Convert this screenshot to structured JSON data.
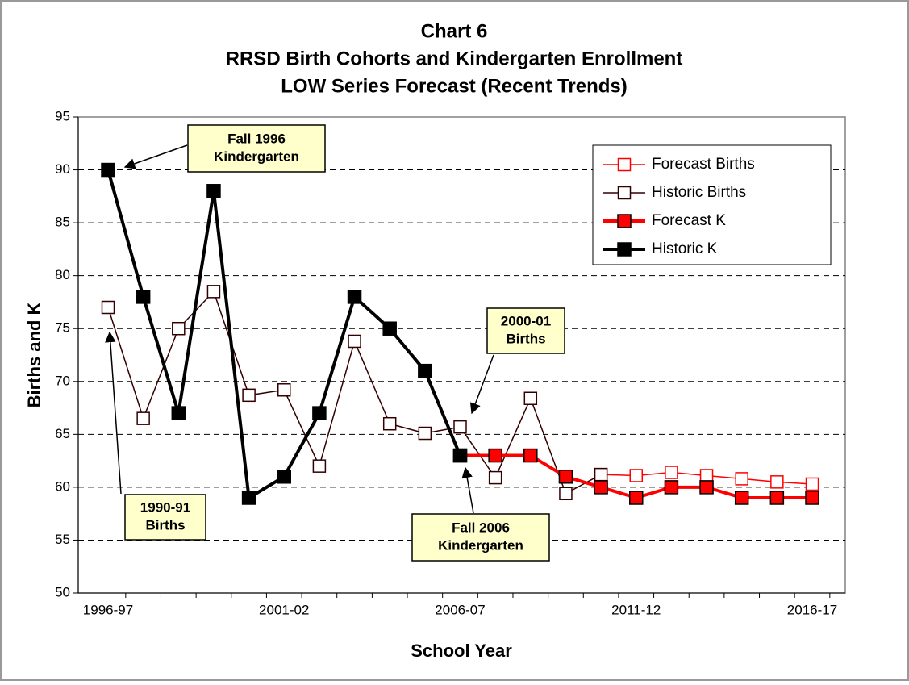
{
  "chart_data": {
    "type": "line",
    "title": [
      "Chart 6",
      "RRSD Birth Cohorts and Kindergarten Enrollment",
      "LOW Series Forecast (Recent Trends)"
    ],
    "ylabel": "Births and K",
    "xlabel": "School Year",
    "categories": [
      "1996-97",
      null,
      null,
      null,
      null,
      "2001-02",
      null,
      null,
      null,
      null,
      "2006-07",
      null,
      null,
      null,
      null,
      "2011-12",
      null,
      null,
      null,
      null,
      "2016-17"
    ],
    "ylim": [
      50,
      95
    ],
    "yticks": [
      50,
      55,
      60,
      65,
      70,
      75,
      80,
      85,
      90,
      95
    ],
    "grid": true,
    "legend": "upper right",
    "series": [
      {
        "name": "Forecast Births",
        "color": "#ff0000",
        "marker": "hollow",
        "width": 1.5,
        "values": [
          null,
          null,
          null,
          null,
          null,
          null,
          null,
          null,
          null,
          null,
          null,
          null,
          null,
          null,
          61.2,
          61.1,
          61.4,
          61.1,
          60.8,
          60.5,
          60.3
        ]
      },
      {
        "name": "Historic Births",
        "color": "#330000",
        "marker": "hollow",
        "width": 1.5,
        "values": [
          77,
          66.5,
          75,
          78.5,
          68.7,
          69.2,
          62,
          73.8,
          66,
          65.1,
          65.7,
          60.9,
          68.4,
          59.4,
          61.2,
          null,
          null,
          null,
          null,
          null,
          null
        ]
      },
      {
        "name": "Forecast K",
        "color": "#ff0000",
        "marker": "filled",
        "width": 4,
        "values": [
          null,
          null,
          null,
          null,
          null,
          null,
          null,
          null,
          null,
          null,
          63,
          63,
          63,
          61,
          60,
          59,
          60,
          60,
          59,
          59,
          59
        ]
      },
      {
        "name": "Historic K",
        "color": "#000000",
        "marker": "filled",
        "width": 4,
        "values": [
          90,
          78,
          67,
          88,
          59,
          61,
          67,
          78,
          75,
          71,
          63,
          null,
          null,
          null,
          null,
          null,
          null,
          null,
          null,
          null,
          null
        ]
      }
    ],
    "annotations": [
      [
        "Fall 1996",
        "Kindergarten"
      ],
      [
        "1990-91",
        "Births"
      ],
      [
        "2000-01",
        "Births"
      ],
      [
        "Fall 2006",
        "Kindergarten"
      ]
    ]
  }
}
